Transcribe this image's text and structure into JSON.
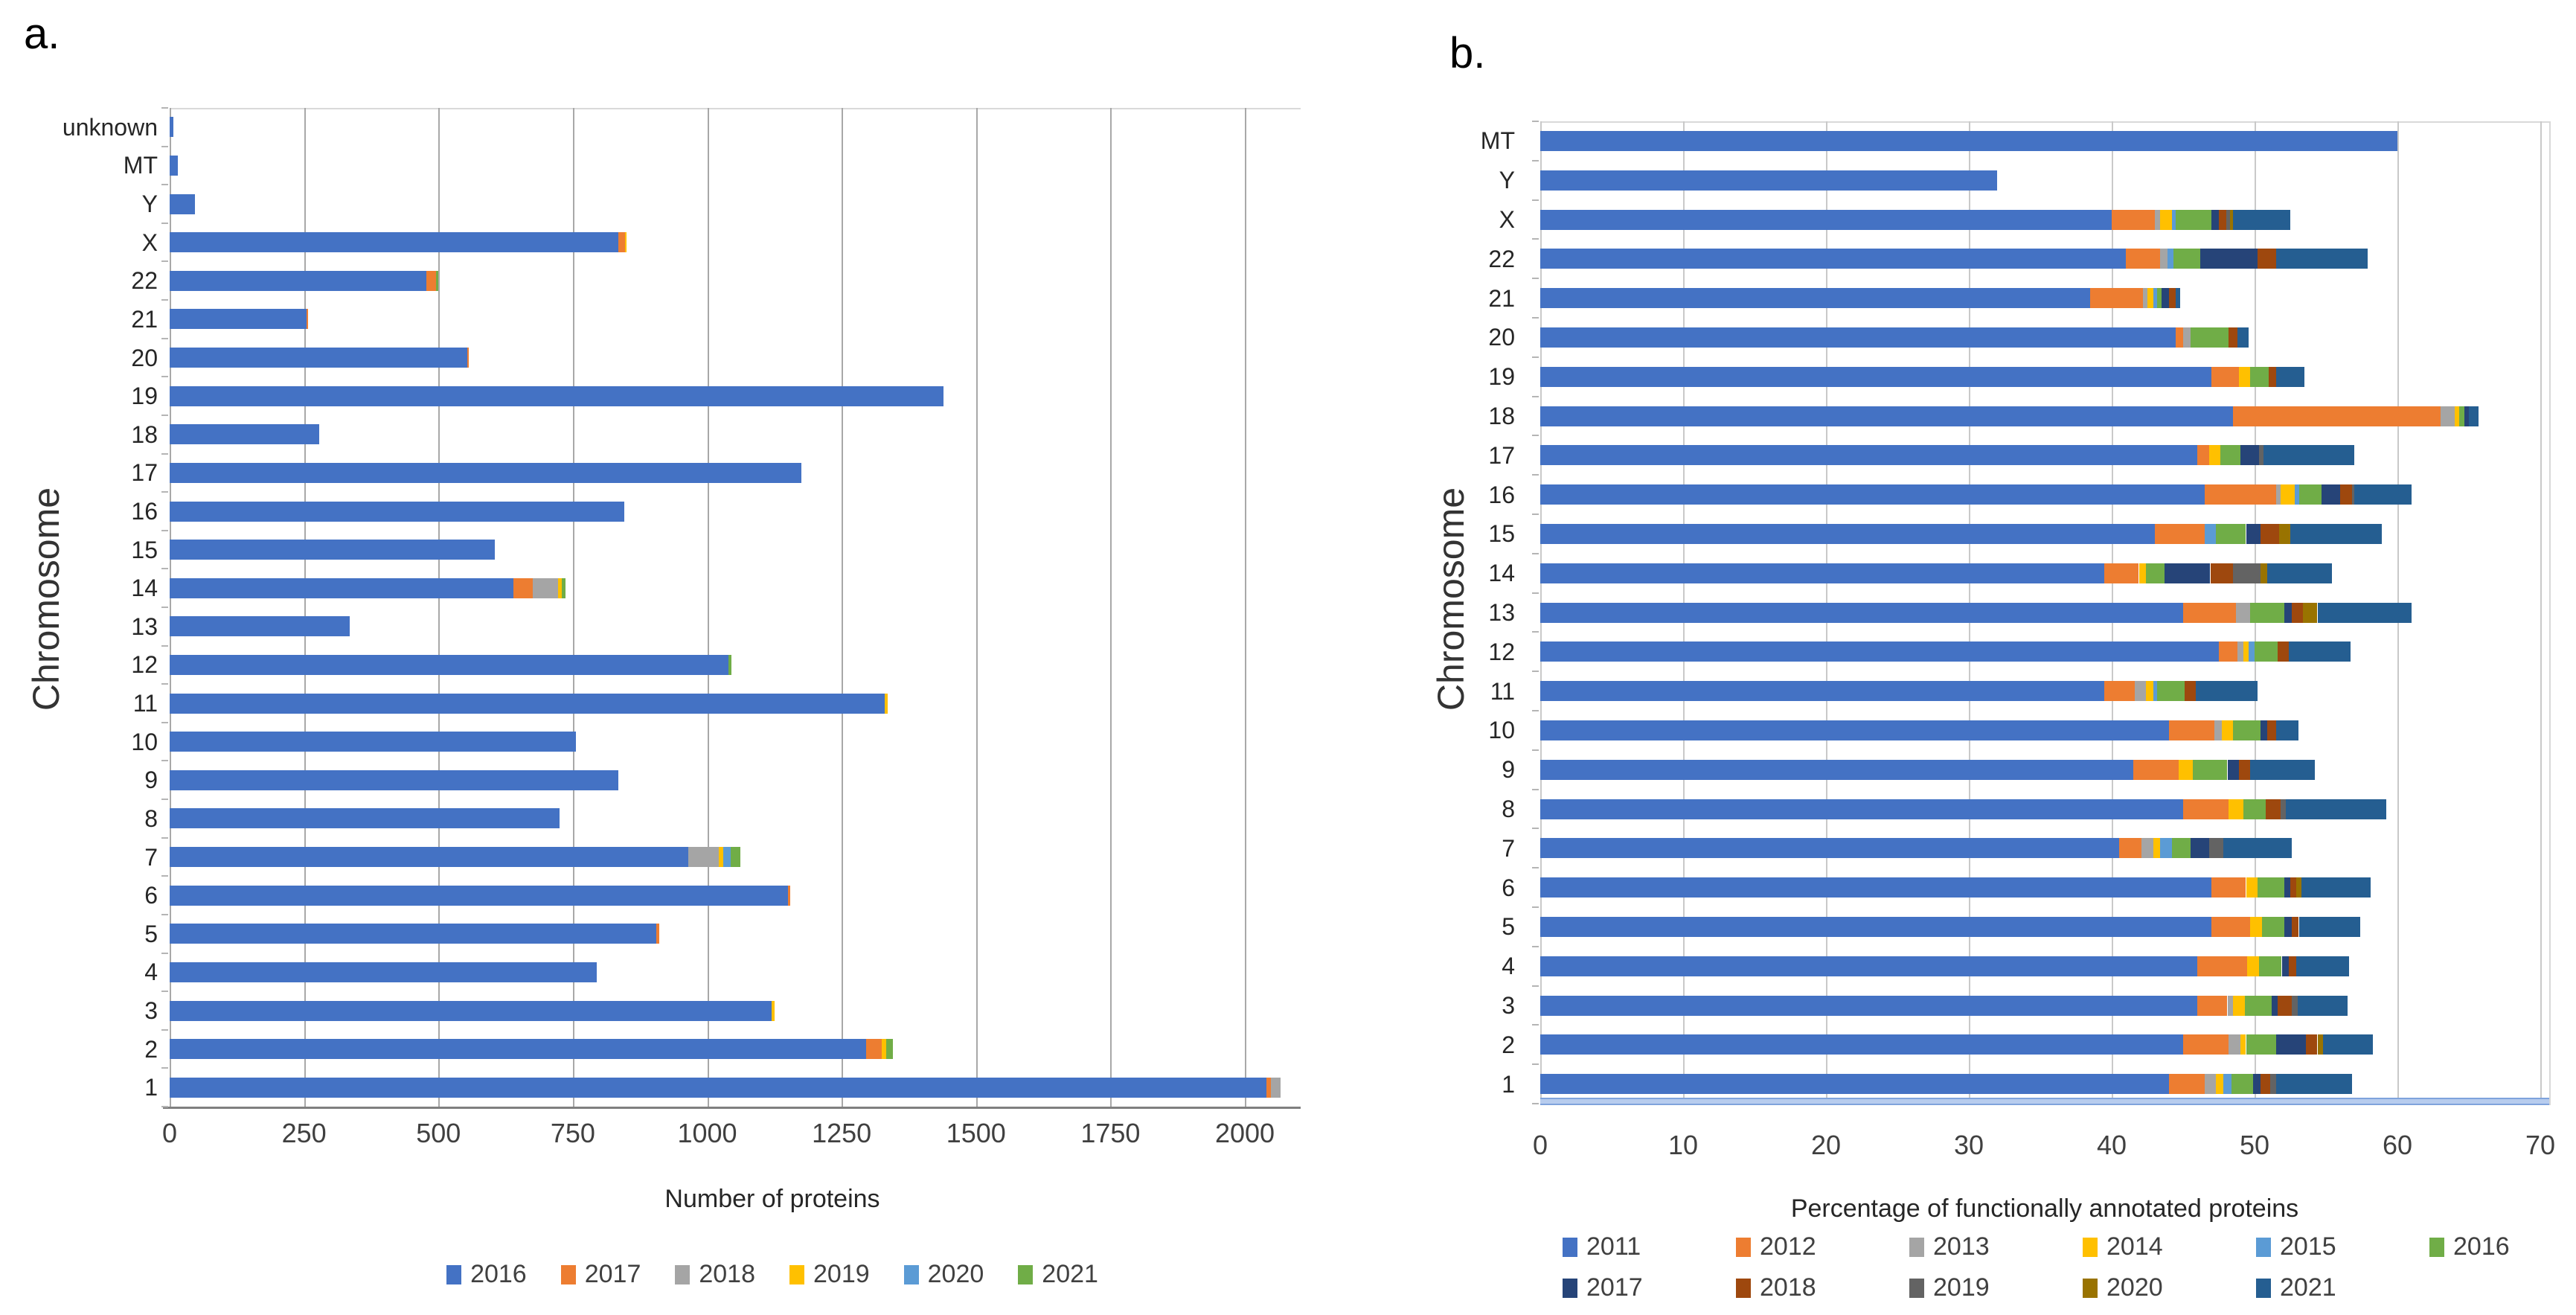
{
  "panels": [
    {
      "label": "a."
    },
    {
      "label": "b."
    }
  ],
  "chart_data": [
    {
      "type": "bar",
      "orientation": "horizontal-stacked",
      "title": "",
      "xlabel": "Number of proteins",
      "ylabel": "Chromosome",
      "grid": true,
      "legend_position": "bottom",
      "xlim": [
        0,
        2100
      ],
      "xticks": [
        0,
        250,
        500,
        750,
        1000,
        1250,
        1500,
        1750,
        2000
      ],
      "categories": [
        "unknown",
        "MT",
        "Y",
        "X",
        "22",
        "21",
        "20",
        "19",
        "18",
        "17",
        "16",
        "15",
        "14",
        "13",
        "12",
        "11",
        "10",
        "9",
        "8",
        "7",
        "6",
        "5",
        "4",
        "3",
        "2",
        "1"
      ],
      "series": [
        {
          "name": "2016",
          "color": "#4472C4",
          "values": [
            7,
            15,
            47,
            835,
            478,
            255,
            553,
            1440,
            278,
            1175,
            845,
            605,
            640,
            335,
            1040,
            1330,
            755,
            835,
            725,
            965,
            1150,
            905,
            795,
            1120,
            1295,
            2040
          ]
        },
        {
          "name": "2017",
          "color": "#ED7D31",
          "values": [
            0,
            0,
            0,
            12,
            17,
            3,
            4,
            0,
            0,
            0,
            0,
            0,
            36,
            0,
            0,
            0,
            0,
            0,
            0,
            0,
            5,
            6,
            0,
            0,
            30,
            8
          ]
        },
        {
          "name": "2018",
          "color": "#A5A5A5",
          "values": [
            0,
            0,
            0,
            0,
            0,
            0,
            0,
            0,
            0,
            0,
            0,
            0,
            47,
            0,
            0,
            0,
            0,
            0,
            0,
            57,
            0,
            0,
            0,
            0,
            0,
            18
          ]
        },
        {
          "name": "2019",
          "color": "#FFC000",
          "values": [
            0,
            0,
            0,
            3,
            0,
            0,
            0,
            0,
            0,
            0,
            0,
            0,
            7,
            0,
            0,
            6,
            0,
            0,
            0,
            8,
            0,
            0,
            0,
            5,
            8,
            0
          ]
        },
        {
          "name": "2020",
          "color": "#5B9BD5",
          "values": [
            0,
            0,
            0,
            0,
            0,
            0,
            0,
            0,
            0,
            0,
            0,
            0,
            0,
            0,
            0,
            0,
            0,
            0,
            0,
            14,
            0,
            0,
            0,
            0,
            0,
            0
          ]
        },
        {
          "name": "2021",
          "color": "#70AD47",
          "values": [
            0,
            0,
            0,
            0,
            5,
            0,
            0,
            0,
            0,
            0,
            0,
            0,
            7,
            0,
            5,
            0,
            0,
            0,
            0,
            18,
            0,
            0,
            0,
            0,
            12,
            0
          ]
        }
      ]
    },
    {
      "type": "bar",
      "orientation": "horizontal-stacked",
      "title": "",
      "xlabel": "Percentage of functionally annotated proteins",
      "ylabel": "Chromosome",
      "grid": true,
      "legend_position": "bottom",
      "xlim": [
        0,
        70.6
      ],
      "xticks": [
        0,
        10,
        20,
        30,
        40,
        50,
        60,
        70
      ],
      "baseline_bar_color": "#B7CCEE",
      "categories": [
        "MT",
        "Y",
        "X",
        "22",
        "21",
        "20",
        "19",
        "18",
        "17",
        "16",
        "15",
        "14",
        "13",
        "12",
        "11",
        "10",
        "9",
        "8",
        "7",
        "6",
        "5",
        "4",
        "3",
        "2",
        "1"
      ],
      "series": [
        {
          "name": "2011",
          "color": "#4472C4",
          "values": [
            60,
            32,
            40,
            41,
            38.5,
            44.5,
            47,
            48.5,
            46,
            46.5,
            43,
            39.5,
            45,
            47.5,
            39.5,
            44,
            41.5,
            45,
            40.5,
            47,
            47,
            46,
            46,
            45,
            44
          ]
        },
        {
          "name": "2012",
          "color": "#ED7D31",
          "values": [
            0,
            0,
            3,
            2.4,
            3.7,
            0.5,
            1.9,
            14.5,
            0.8,
            5,
            3.5,
            2.4,
            3.7,
            1.3,
            2.1,
            3.2,
            3.2,
            3.2,
            1.6,
            2.4,
            2.7,
            3.5,
            2.1,
            3.2,
            2.5
          ]
        },
        {
          "name": "2013",
          "color": "#A5A5A5",
          "values": [
            0,
            0,
            0.4,
            0.5,
            0.3,
            0.5,
            0,
            1,
            0,
            0.3,
            0,
            0,
            1,
            0.4,
            0.8,
            0.5,
            0,
            0,
            0.8,
            0,
            0,
            0,
            0.4,
            0.8,
            0.8
          ]
        },
        {
          "name": "2014",
          "color": "#FFC000",
          "values": [
            0,
            0,
            0.8,
            0,
            0.4,
            0,
            0.8,
            0.3,
            0.8,
            1,
            0,
            0.5,
            0,
            0.4,
            0.5,
            0.8,
            1,
            1,
            0.5,
            0.8,
            0.8,
            0.8,
            0.8,
            0.4,
            0.5
          ]
        },
        {
          "name": "2015",
          "color": "#5B9BD5",
          "values": [
            0,
            0,
            0.3,
            0.4,
            0.3,
            0,
            0,
            0,
            0,
            0.3,
            0.8,
            0,
            0,
            0.4,
            0.3,
            0,
            0,
            0,
            0.8,
            0,
            0,
            0,
            0,
            0,
            0.6
          ]
        },
        {
          "name": "2016",
          "color": "#70AD47",
          "values": [
            0,
            0,
            2.5,
            1.9,
            0.3,
            2.7,
            1.3,
            0.4,
            1.4,
            1.6,
            2.1,
            1.3,
            2.4,
            1.6,
            1.9,
            1.9,
            2.4,
            1.6,
            1.3,
            1.9,
            1.6,
            1.6,
            1.9,
            2.1,
            1.5
          ]
        },
        {
          "name": "2017",
          "color": "#264478",
          "values": [
            0,
            0,
            0.5,
            4,
            0.5,
            0,
            0,
            0.3,
            1.3,
            1.3,
            1,
            3.2,
            0.5,
            0,
            0,
            0.5,
            0.8,
            0,
            1.3,
            0.4,
            0.5,
            0.5,
            0.4,
            2.1,
            0.5
          ]
        },
        {
          "name": "2018",
          "color": "#9E480E",
          "values": [
            0,
            0,
            0.5,
            1.3,
            0.5,
            0.6,
            0.5,
            0,
            0,
            0.8,
            1.3,
            1.6,
            0.8,
            0.8,
            0.8,
            0.6,
            0.8,
            1,
            0,
            0.4,
            0.5,
            0.5,
            1,
            0.8,
            0.7
          ]
        },
        {
          "name": "2019",
          "color": "#636363",
          "values": [
            0,
            0,
            0.3,
            0,
            0,
            0,
            0,
            0,
            0.3,
            0.2,
            0,
            1.9,
            0,
            0,
            0,
            0,
            0,
            0.4,
            1,
            0,
            0,
            0,
            0.4,
            0,
            0.4
          ]
        },
        {
          "name": "2020",
          "color": "#997300",
          "values": [
            0,
            0,
            0.2,
            0,
            0,
            0,
            0,
            0,
            0,
            0,
            0.8,
            0.5,
            1,
            0,
            0,
            0,
            0,
            0,
            0,
            0.4,
            0,
            0,
            0,
            0.4,
            0
          ]
        },
        {
          "name": "2021",
          "color": "#255E91",
          "values": [
            0,
            0,
            4,
            6.4,
            0.3,
            0.8,
            2,
            0.7,
            6.4,
            4,
            6.4,
            4.5,
            6.6,
            4.3,
            4.3,
            1.6,
            4.5,
            7,
            4.8,
            4.8,
            4.3,
            3.7,
            3.5,
            3.5,
            5.3
          ]
        }
      ]
    }
  ]
}
